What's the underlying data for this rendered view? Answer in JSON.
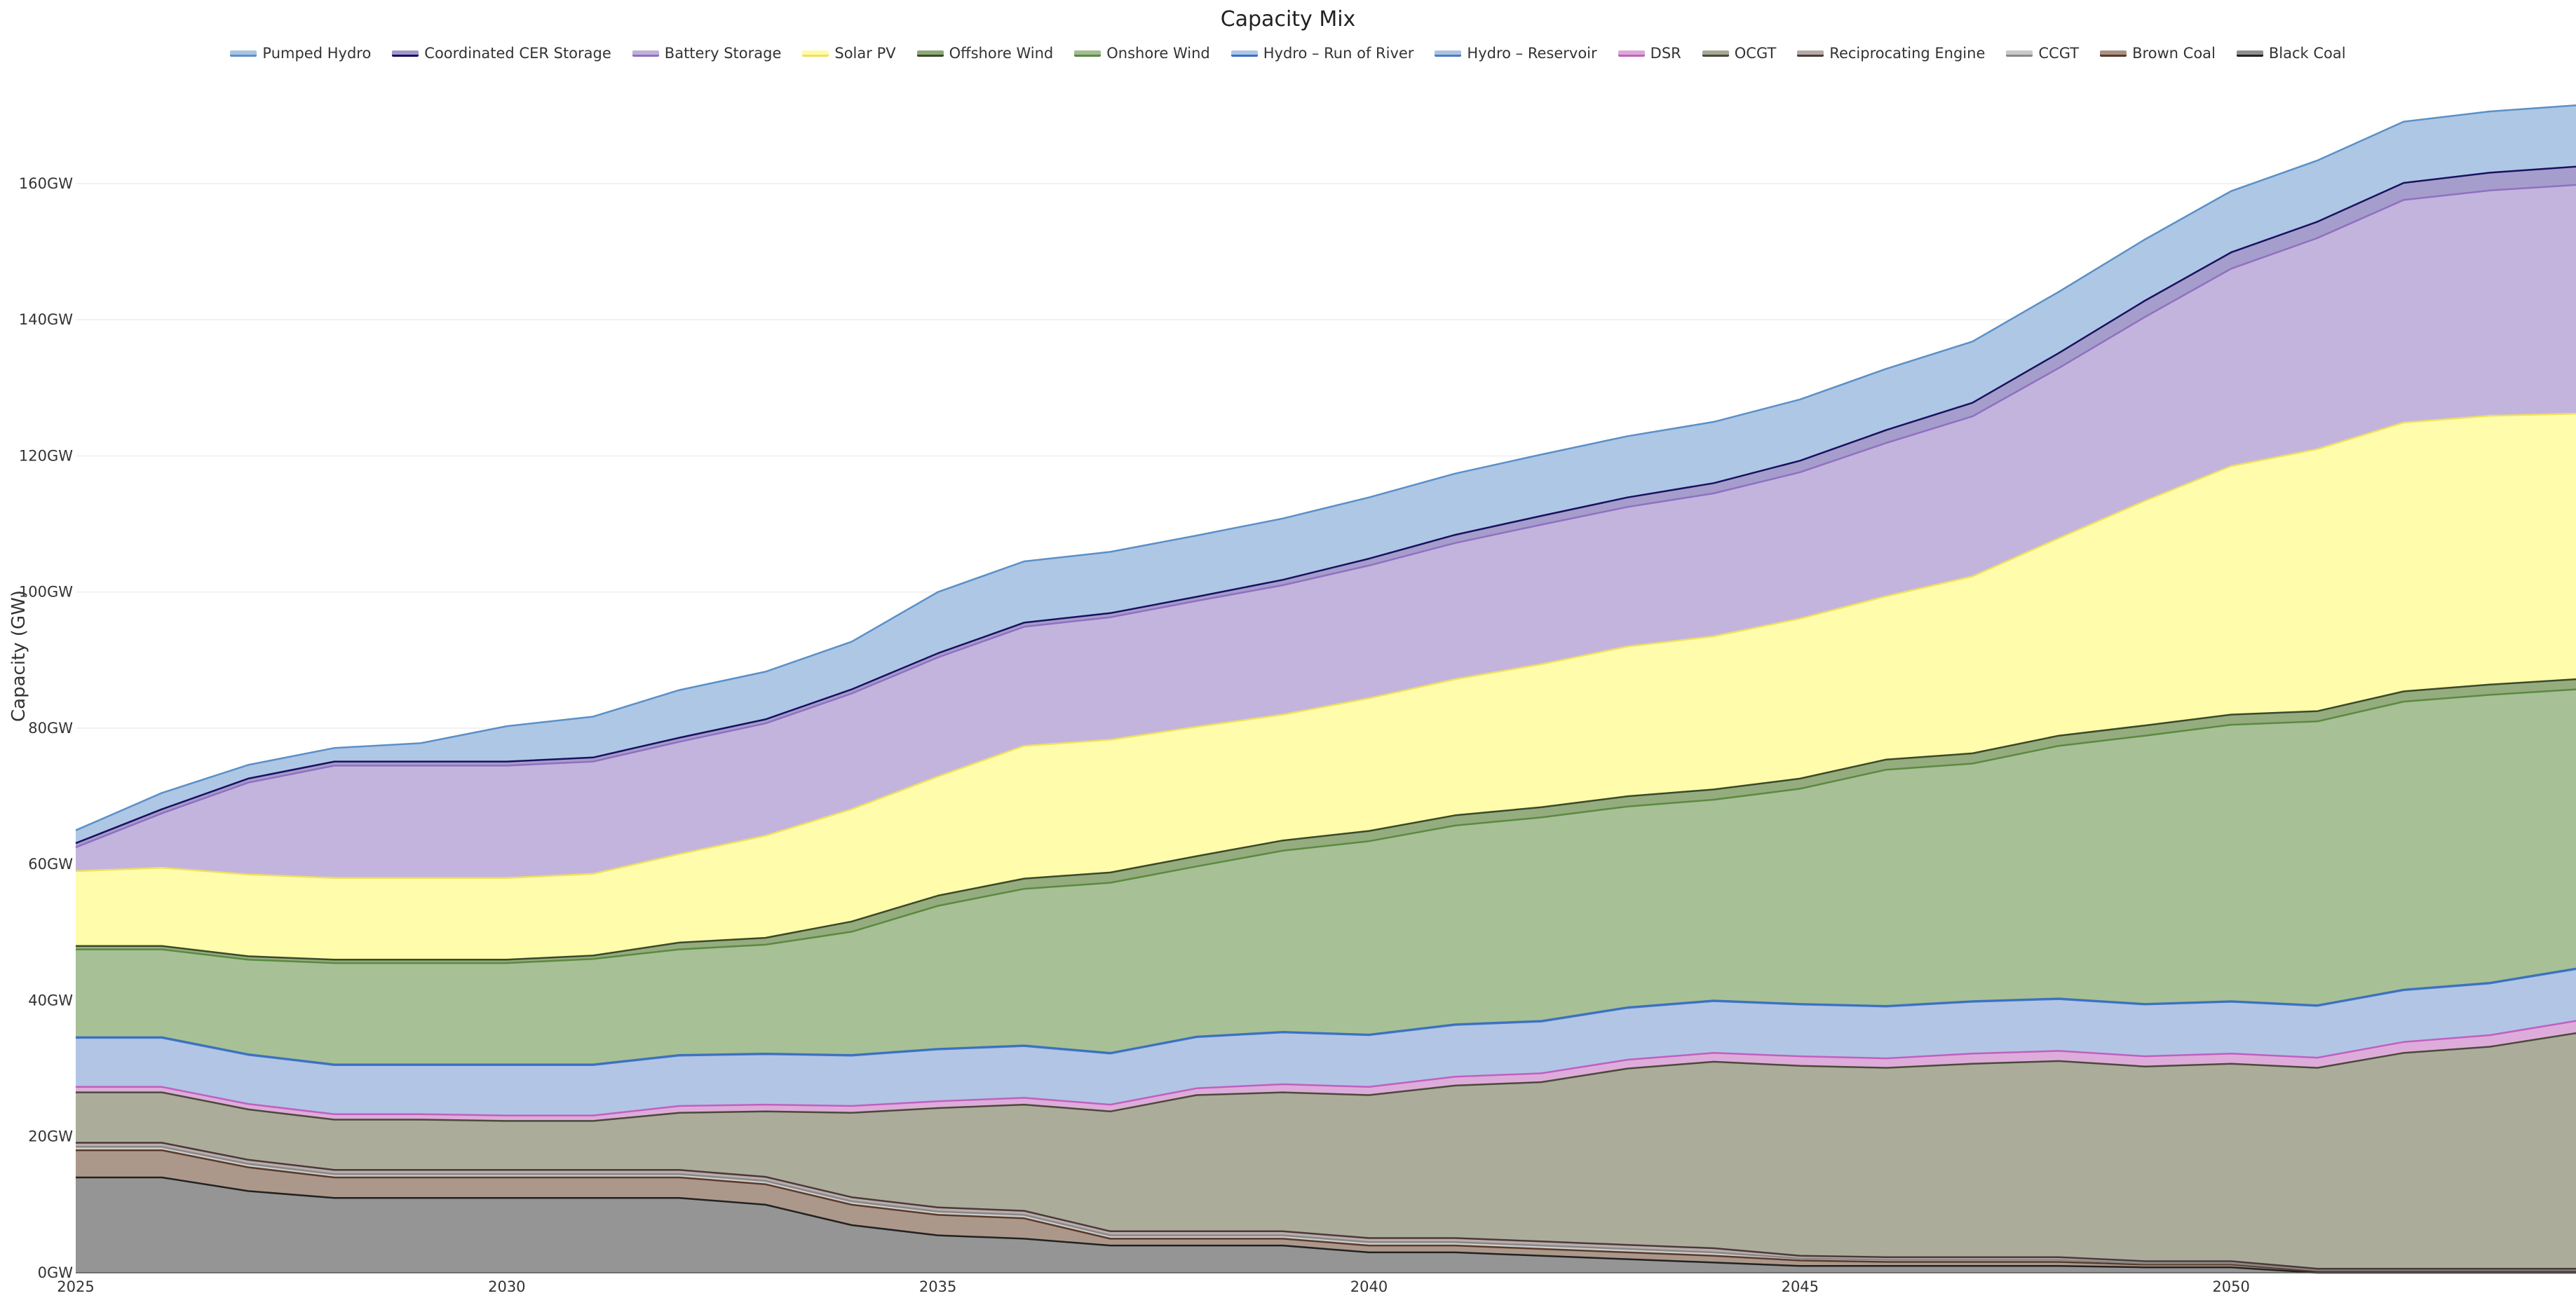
{
  "chart_data": {
    "type": "area",
    "stacked": true,
    "title": "Capacity Mix",
    "xlabel": "",
    "ylabel": "Capacity (GW)",
    "ylim": [
      0,
      174
    ],
    "xlim": [
      2025,
      2054
    ],
    "x": [
      2025,
      2026,
      2027,
      2028,
      2029,
      2030,
      2031,
      2032,
      2033,
      2034,
      2035,
      2036,
      2037,
      2038,
      2039,
      2040,
      2041,
      2042,
      2043,
      2044,
      2045,
      2046,
      2047,
      2048,
      2049,
      2050,
      2051,
      2052,
      2053,
      2054
    ],
    "x_ticks": [
      2025,
      2030,
      2035,
      2040,
      2045,
      2050
    ],
    "y_ticks": [
      0,
      20,
      40,
      60,
      80,
      100,
      120,
      140,
      160
    ],
    "y_tick_suffix": "GW",
    "grid": "horizontal",
    "legend_position": "top",
    "series": [
      {
        "name": "Black Coal",
        "fill": "#8f8f8f",
        "line": "#222222",
        "values": [
          14,
          14,
          12,
          11,
          11,
          11,
          11,
          11,
          10,
          7,
          5.5,
          5,
          4,
          4,
          4,
          3,
          3,
          2.5,
          2,
          1.5,
          1,
          1,
          1,
          1,
          0.8,
          0.8,
          0,
          0,
          0,
          0
        ]
      },
      {
        "name": "Brown Coal",
        "fill": "#a89285",
        "line": "#5a3a2a",
        "values": [
          4,
          4,
          3.5,
          3,
          3,
          3,
          3,
          3,
          3,
          3,
          3,
          3,
          1,
          1,
          1,
          1,
          1,
          1,
          1,
          1,
          0.8,
          0.6,
          0.6,
          0.6,
          0.4,
          0.4,
          0.2,
          0.2,
          0.2,
          0.2
        ]
      },
      {
        "name": "CCGT",
        "fill": "#c9c9c9",
        "line": "#888888",
        "values": [
          0.5,
          0.5,
          0.5,
          0.5,
          0.5,
          0.5,
          0.5,
          0.5,
          0.5,
          0.5,
          0.5,
          0.5,
          0.5,
          0.5,
          0.5,
          0.5,
          0.5,
          0.5,
          0.5,
          0.5,
          0.3,
          0.3,
          0.3,
          0.3,
          0.2,
          0.2,
          0.2,
          0.2,
          0.2,
          0.2
        ]
      },
      {
        "name": "Reciprocating Engine",
        "fill": "#b7a9a6",
        "line": "#4a3a3a",
        "values": [
          0.6,
          0.6,
          0.6,
          0.6,
          0.6,
          0.6,
          0.6,
          0.6,
          0.6,
          0.6,
          0.6,
          0.6,
          0.6,
          0.6,
          0.6,
          0.6,
          0.6,
          0.6,
          0.6,
          0.6,
          0.4,
          0.4,
          0.4,
          0.4,
          0.3,
          0.3,
          0.2,
          0.2,
          0.2,
          0.2
        ]
      },
      {
        "name": "OCGT",
        "fill": "#a8a896",
        "line": "#4a4a3a",
        "values": [
          7.4,
          7.4,
          7.4,
          7.4,
          7.4,
          7.2,
          7.2,
          8.4,
          9.6,
          12.4,
          14.6,
          15.6,
          17.6,
          20,
          20.4,
          21,
          22.4,
          23.4,
          25.9,
          27.4,
          27.9,
          27.8,
          28.4,
          28.8,
          28.6,
          29,
          29.5,
          31.7,
          32.6,
          34.6
        ]
      },
      {
        "name": "DSR",
        "fill": "#dca8d8",
        "line": "#c060c0",
        "values": [
          0.8,
          0.8,
          0.8,
          0.8,
          0.8,
          0.8,
          0.8,
          1,
          1,
          1,
          1,
          1,
          1,
          1,
          1.2,
          1.2,
          1.3,
          1.3,
          1.3,
          1.3,
          1.4,
          1.4,
          1.5,
          1.5,
          1.5,
          1.5,
          1.5,
          1.6,
          1.7,
          1.8
        ]
      },
      {
        "name": "Hydro – Reservoir",
        "fill": "#aec2e4",
        "line": "#4a7cc0",
        "values": [
          7.2,
          7.2,
          7.2,
          7.2,
          7.2,
          7.4,
          7.4,
          7.4,
          7.4,
          7.4,
          7.6,
          7.6,
          7.5,
          7.5,
          7.6,
          7.6,
          7.6,
          7.6,
          7.6,
          7.6,
          7.6,
          7.6,
          7.6,
          7.6,
          7.6,
          7.6,
          7.6,
          7.6,
          7.6,
          7.6
        ]
      },
      {
        "name": "Hydro – Run of River",
        "fill": "#aec6ea",
        "line": "#3a70c0",
        "values": [
          0.1,
          0.1,
          0.1,
          0.1,
          0.1,
          0.1,
          0.1,
          0.1,
          0.1,
          0.1,
          0.1,
          0.1,
          0.1,
          0.1,
          0.1,
          0.1,
          0.1,
          0.1,
          0.1,
          0.1,
          0.1,
          0.1,
          0.1,
          0.1,
          0.1,
          0.1,
          0.1,
          0.1,
          0.1,
          0.1
        ]
      },
      {
        "name": "Onshore Wind",
        "fill": "#a2bd90",
        "line": "#5a8a40",
        "values": [
          12.9,
          12.9,
          13.9,
          14.9,
          14.9,
          14.9,
          15.5,
          15.5,
          16,
          18.1,
          21,
          23,
          25,
          25,
          26.6,
          28.4,
          29.2,
          29.9,
          29.5,
          29.5,
          31.6,
          34.7,
          34.9,
          37.1,
          39.4,
          40.6,
          41.7,
          42.3,
          42.3,
          41
        ]
      },
      {
        "name": "Offshore Wind",
        "fill": "#8fa878",
        "line": "#3a4a2a",
        "values": [
          0.5,
          0.5,
          0.5,
          0.5,
          0.5,
          0.5,
          0.5,
          1,
          1,
          1.5,
          1.5,
          1.5,
          1.5,
          1.5,
          1.5,
          1.5,
          1.5,
          1.5,
          1.5,
          1.5,
          1.5,
          1.5,
          1.5,
          1.5,
          1.5,
          1.5,
          1.5,
          1.5,
          1.5,
          1.5
        ]
      },
      {
        "name": "Solar PV",
        "fill": "#fffca8",
        "line": "#f0e060",
        "values": [
          11,
          11.5,
          12,
          12,
          12,
          12,
          12,
          13,
          15,
          16.5,
          17.5,
          19.5,
          19.5,
          19,
          18.5,
          19.5,
          20,
          21,
          22,
          22.5,
          23.5,
          24,
          26,
          29,
          33,
          36.5,
          38.5,
          39.5,
          39.5,
          39
        ]
      },
      {
        "name": "Battery Storage",
        "fill": "#c0b0dc",
        "line": "#9070c0",
        "values": [
          3.5,
          8,
          13.5,
          16.5,
          16.5,
          16.5,
          16.5,
          16.5,
          16.5,
          17,
          17.5,
          17.5,
          18,
          18.5,
          19,
          19.5,
          20,
          20.5,
          20.5,
          21,
          21.5,
          22.5,
          23.5,
          25,
          27,
          29,
          31,
          32.7,
          33.1,
          33.6
        ]
      },
      {
        "name": "Coordinated CER Storage",
        "fill": "#a098c8",
        "line": "#1a1060",
        "values": [
          0.6,
          0.6,
          0.6,
          0.6,
          0.6,
          0.6,
          0.6,
          0.6,
          0.6,
          0.6,
          0.6,
          0.6,
          0.6,
          0.6,
          0.8,
          1,
          1.2,
          1.3,
          1.4,
          1.5,
          1.7,
          1.9,
          2,
          2.2,
          2.4,
          2.4,
          2.4,
          2.5,
          2.6,
          2.7
        ]
      },
      {
        "name": "Pumped Hydro",
        "fill": "#aac4e4",
        "line": "#5a90c8",
        "values": [
          1.9,
          2.4,
          2,
          2,
          2.7,
          5.2,
          6,
          7,
          7,
          7,
          9,
          9,
          9,
          9,
          9,
          9,
          9,
          9,
          9,
          9,
          9,
          9,
          9,
          9,
          9,
          9,
          9,
          9,
          9,
          9
        ]
      }
    ],
    "legend_order": [
      "Pumped Hydro",
      "Coordinated CER Storage",
      "Battery Storage",
      "Solar PV",
      "Offshore Wind",
      "Onshore Wind",
      "Hydro – Run of River",
      "Hydro – Reservoir",
      "DSR",
      "OCGT",
      "Reciprocating Engine",
      "CCGT",
      "Brown Coal",
      "Black Coal"
    ]
  }
}
